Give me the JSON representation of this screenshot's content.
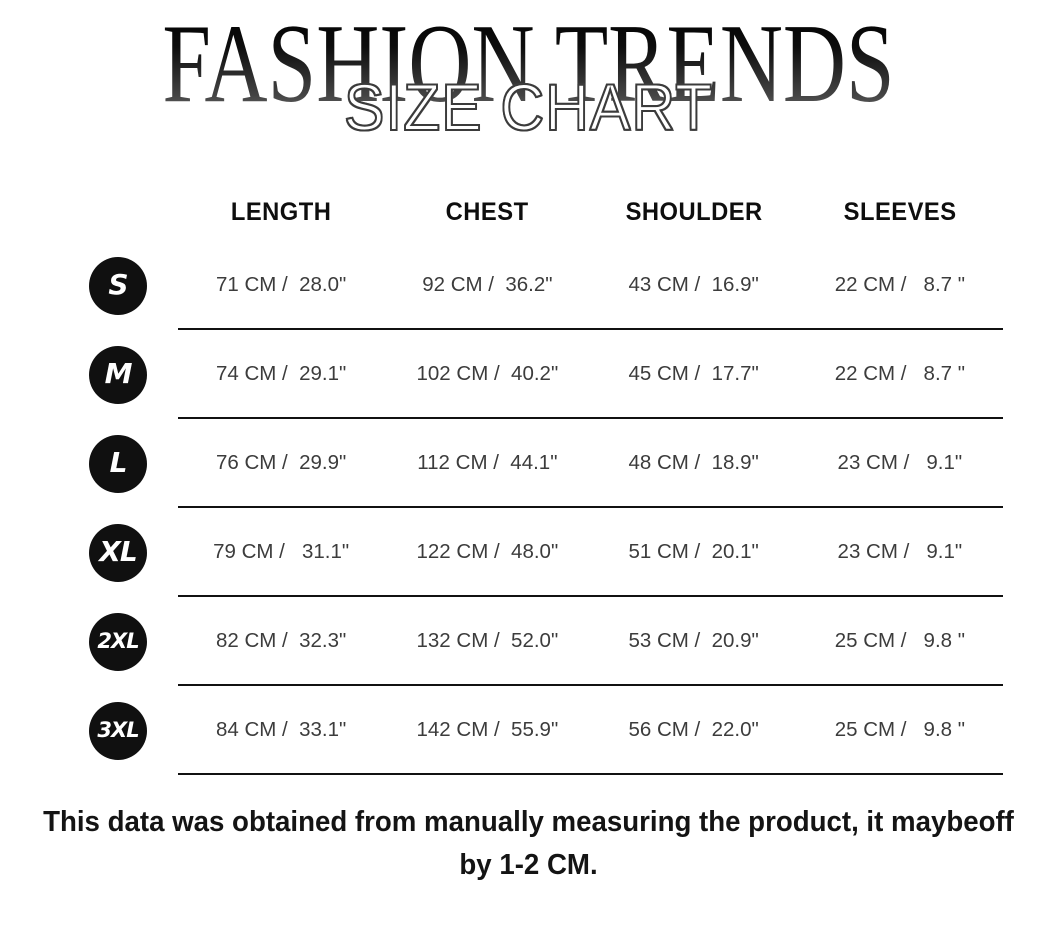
{
  "title": "FASHION TRENDS",
  "subtitle": "SIZE CHART",
  "table": {
    "headers": [
      "LENGTH",
      "CHEST",
      "SHOULDER",
      "SLEEVES"
    ],
    "rows": [
      {
        "size": "S",
        "length": "71 CM /  28.0\"",
        "chest": "92 CM /  36.2\"",
        "shoulder": "43 CM /  16.9\"",
        "sleeves": "22 CM /   8.7 \""
      },
      {
        "size": "M",
        "length": "74 CM /  29.1\"",
        "chest": "102 CM /  40.2\"",
        "shoulder": "45 CM /  17.7\"",
        "sleeves": "22 CM /   8.7 \""
      },
      {
        "size": "L",
        "length": "76 CM /  29.9\"",
        "chest": "112 CM /  44.1\"",
        "shoulder": "48 CM /  18.9\"",
        "sleeves": "23 CM /   9.1\""
      },
      {
        "size": "XL",
        "length": "79 CM /   31.1\"",
        "chest": "122 CM /  48.0\"",
        "shoulder": "51 CM /  20.1\"",
        "sleeves": "23 CM /   9.1\""
      },
      {
        "size": "2XL",
        "length": "82 CM /  32.3\"",
        "chest": "132 CM /  52.0\"",
        "shoulder": "53 CM /  20.9\"",
        "sleeves": "25 CM /   9.8 \""
      },
      {
        "size": "3XL",
        "length": "84 CM /  33.1\"",
        "chest": "142 CM /  55.9\"",
        "shoulder": "56 CM /  22.0\"",
        "sleeves": "25 CM /   9.8 \""
      }
    ]
  },
  "footer": {
    "line1": "This data was obtained from manually measuring the product, it maybeoff",
    "line2": "by 1-2 CM."
  },
  "colors": {
    "badge_bg": "#101010",
    "text_dark": "#141414",
    "text_data": "#3c3c3c",
    "rule": "#111111"
  }
}
